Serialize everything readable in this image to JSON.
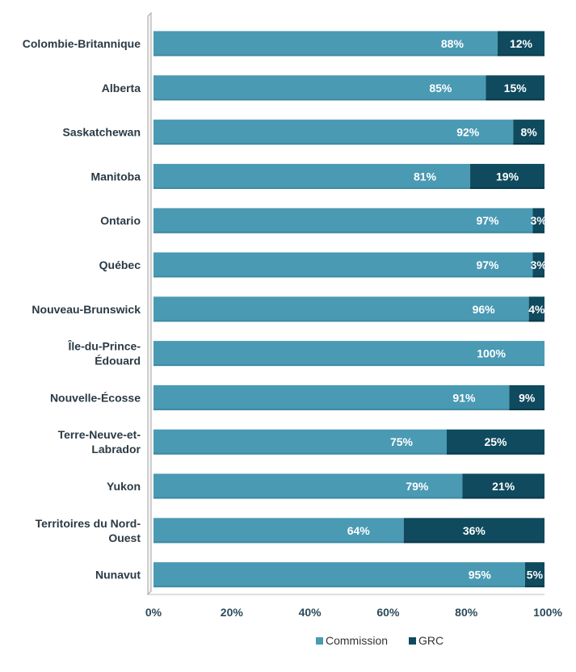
{
  "chart_data": {
    "type": "bar",
    "orientation": "horizontal",
    "stacked": true,
    "categories": [
      "Colombie-Britannique",
      "Alberta",
      "Saskatchewan",
      "Manitoba",
      "Ontario",
      "Québec",
      "Nouveau-Brunswick",
      "Île-du-Prince-Édouard",
      "Nouvelle-Écosse",
      "Terre-Neuve-et-Labrador",
      "Yukon",
      "Territoires du Nord-Ouest",
      "Nunavut"
    ],
    "category_lines": [
      [
        "Colombie-Britannique"
      ],
      [
        "Alberta"
      ],
      [
        "Saskatchewan"
      ],
      [
        "Manitoba"
      ],
      [
        "Ontario"
      ],
      [
        "Québec"
      ],
      [
        "Nouveau-Brunswick"
      ],
      [
        "Île-du-Prince-",
        "Édouard"
      ],
      [
        "Nouvelle-Écosse"
      ],
      [
        "Terre-Neuve-et-",
        "Labrador"
      ],
      [
        "Yukon"
      ],
      [
        "Territoires du Nord-",
        "Ouest"
      ],
      [
        "Nunavut"
      ]
    ],
    "series": [
      {
        "name": "Commission",
        "color": "#4a9ab4",
        "values": [
          88,
          85,
          92,
          81,
          97,
          97,
          96,
          100,
          91,
          75,
          79,
          64,
          95
        ],
        "labels": [
          "88%",
          "85%",
          "92%",
          "81%",
          "97%",
          "97%",
          "96%",
          "100%",
          "91%",
          "75%",
          "79%",
          "64%",
          "95%"
        ]
      },
      {
        "name": "GRC",
        "color": "#0f4a5e",
        "values": [
          12,
          15,
          8,
          19,
          3,
          3,
          4,
          0,
          9,
          25,
          21,
          36,
          5
        ],
        "labels": [
          "12%",
          "15%",
          "8%",
          "19%",
          "3%",
          "3%",
          "4%",
          "",
          "9%",
          "25%",
          "21%",
          "36%",
          "5%"
        ]
      }
    ],
    "xlim": [
      0,
      100
    ],
    "xticks": [
      "0%",
      "20%",
      "40%",
      "60%",
      "80%",
      "100%"
    ],
    "xtick_values": [
      0,
      20,
      40,
      60,
      80,
      100
    ],
    "legend_position": "bottom",
    "grid": false
  }
}
